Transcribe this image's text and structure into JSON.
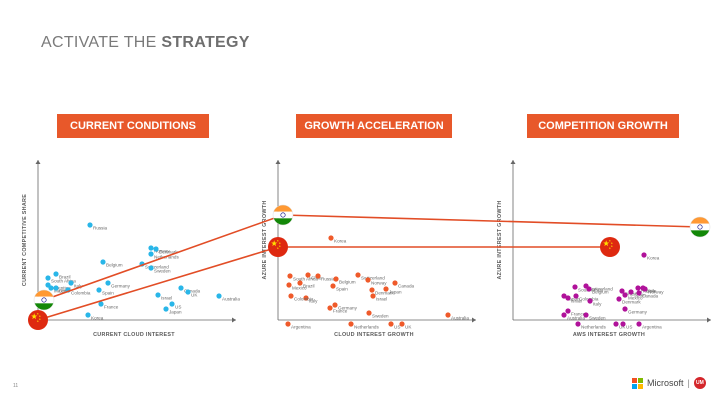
{
  "title": {
    "normal": "ACTIVATE THE ",
    "bold": "STRATEGY"
  },
  "slide_number": "11",
  "brand": {
    "name": "Microsoft",
    "separator": "|",
    "badge": "UM",
    "logo_colors": [
      "#f25022",
      "#7fba00",
      "#00a4ef",
      "#ffb900"
    ]
  },
  "colors": {
    "accent": "#e8582a",
    "current": "#29b6e8",
    "acceleration": "#ef5a2a",
    "competition": "#b0129a",
    "link": "#e24d26"
  },
  "panels": [
    {
      "header": "CURRENT CONDITIONS",
      "xlabel": "CURRENT CLOUD INTEREST",
      "ylabel": "CURRENT COMPETITIVE SHARE"
    },
    {
      "header": "GROWTH ACCELERATION",
      "xlabel": "CLOUD INTEREST GROWTH",
      "ylabel": "AZURE INTEREST GROWTH"
    },
    {
      "header": "COMPETITION GROWTH",
      "xlabel": "AWS INTEREST GROWTH",
      "ylabel": "AZURE INTEREST GROWTH"
    }
  ],
  "chart_data": [
    {
      "type": "scatter",
      "title": "CURRENT CONDITIONS",
      "xlabel": "CURRENT CLOUD INTEREST",
      "ylabel": "CURRENT COMPETITIVE SHARE",
      "points": [
        {
          "label": "Russia",
          "x": 52,
          "y": 95
        },
        {
          "label": "Norway",
          "x": 113,
          "y": 72
        },
        {
          "label": "Denmark",
          "x": 118,
          "y": 71
        },
        {
          "label": "Netherlands",
          "x": 113,
          "y": 66
        },
        {
          "label": "Switzerland",
          "x": 104,
          "y": 56
        },
        {
          "label": "Sweden",
          "x": 113,
          "y": 52
        },
        {
          "label": "Belgium",
          "x": 65,
          "y": 58
        },
        {
          "label": "Brazil",
          "x": 18,
          "y": 46
        },
        {
          "label": "South Africa",
          "x": 10,
          "y": 42
        },
        {
          "label": "Italy",
          "x": 33,
          "y": 37
        },
        {
          "label": "Germany",
          "x": 70,
          "y": 37
        },
        {
          "label": "Argentina",
          "x": 10,
          "y": 35
        },
        {
          "label": "Mexico",
          "x": 13,
          "y": 32
        },
        {
          "label": "Chile",
          "x": 18,
          "y": 32
        },
        {
          "label": "Colombia",
          "x": 30,
          "y": 30
        },
        {
          "label": "Spain",
          "x": 61,
          "y": 30
        },
        {
          "label": "Canada",
          "x": 143,
          "y": 32
        },
        {
          "label": "UK",
          "x": 150,
          "y": 28
        },
        {
          "label": "Israel",
          "x": 120,
          "y": 25
        },
        {
          "label": "Australia",
          "x": 181,
          "y": 24
        },
        {
          "label": "France",
          "x": 63,
          "y": 16
        },
        {
          "label": "US",
          "x": 134,
          "y": 16
        },
        {
          "label": "Japan",
          "x": 128,
          "y": 11
        },
        {
          "label": "Korea",
          "x": 50,
          "y": 5
        }
      ],
      "flags": [
        {
          "label": "India",
          "x": 6,
          "y": 20
        },
        {
          "label": "China",
          "x": 0,
          "y": 0
        }
      ]
    },
    {
      "type": "scatter",
      "title": "GROWTH ACCELERATION",
      "xlabel": "CLOUD INTEREST GROWTH",
      "ylabel": "AZURE INTEREST GROWTH",
      "points": [
        {
          "label": "Korea",
          "x": 53,
          "y": 82
        },
        {
          "label": "South Africa",
          "x": 12,
          "y": 44
        },
        {
          "label": "Chile",
          "x": 30,
          "y": 45
        },
        {
          "label": "Russia",
          "x": 40,
          "y": 44
        },
        {
          "label": "Switzerland",
          "x": 80,
          "y": 45
        },
        {
          "label": "Belgium",
          "x": 58,
          "y": 41
        },
        {
          "label": "Norway",
          "x": 90,
          "y": 40
        },
        {
          "label": "Canada",
          "x": 117,
          "y": 37
        },
        {
          "label": "Brazil",
          "x": 22,
          "y": 37
        },
        {
          "label": "Spain",
          "x": 55,
          "y": 34
        },
        {
          "label": "Mexico",
          "x": 11,
          "y": 35
        },
        {
          "label": "Denmark",
          "x": 94,
          "y": 30
        },
        {
          "label": "Japan",
          "x": 108,
          "y": 31
        },
        {
          "label": "Italy",
          "x": 28,
          "y": 22
        },
        {
          "label": "Colombia",
          "x": 13,
          "y": 24
        },
        {
          "label": "Israel",
          "x": 95,
          "y": 24
        },
        {
          "label": "Germany",
          "x": 57,
          "y": 15
        },
        {
          "label": "France",
          "x": 52,
          "y": 12
        },
        {
          "label": "Sweden",
          "x": 91,
          "y": 7
        },
        {
          "label": "Australia",
          "x": 170,
          "y": 5
        },
        {
          "label": "Argentina",
          "x": 10,
          "y": -4
        },
        {
          "label": "US",
          "x": 113,
          "y": -4
        },
        {
          "label": "UK",
          "x": 124,
          "y": -4
        },
        {
          "label": "Netherlands",
          "x": 73,
          "y": -4
        }
      ],
      "flags": [
        {
          "label": "India",
          "x": 5,
          "y": 105
        },
        {
          "label": "China",
          "x": 0,
          "y": 73
        }
      ]
    },
    {
      "type": "scatter",
      "title": "COMPETITION GROWTH",
      "xlabel": "AWS INTEREST GROWTH",
      "ylabel": "AZURE INTEREST GROWTH",
      "points": [
        {
          "label": "Korea",
          "x": 131,
          "y": 65
        },
        {
          "label": "Switzerland",
          "x": 73,
          "y": 34
        },
        {
          "label": "South Africa",
          "x": 62,
          "y": 33
        },
        {
          "label": "Belgium",
          "x": 76,
          "y": 31
        },
        {
          "label": "Russia",
          "x": 125,
          "y": 32
        },
        {
          "label": "Chile",
          "x": 130,
          "y": 32
        },
        {
          "label": "Norway",
          "x": 132,
          "y": 31
        },
        {
          "label": "Brazil",
          "x": 109,
          "y": 29
        },
        {
          "label": "Spain",
          "x": 118,
          "y": 28
        },
        {
          "label": "Canada",
          "x": 126,
          "y": 27
        },
        {
          "label": "Mexico",
          "x": 112,
          "y": 25
        },
        {
          "label": "Japan",
          "x": 51,
          "y": 24
        },
        {
          "label": "Israel",
          "x": 55,
          "y": 22
        },
        {
          "label": "Colombia",
          "x": 63,
          "y": 24
        },
        {
          "label": "Italy",
          "x": 77,
          "y": 19
        },
        {
          "label": "Denmark",
          "x": 106,
          "y": 21
        },
        {
          "label": "Germany",
          "x": 112,
          "y": 11
        },
        {
          "label": "France",
          "x": 55,
          "y": 9
        },
        {
          "label": "Sweden",
          "x": 73,
          "y": 5
        },
        {
          "label": "Australia",
          "x": 51,
          "y": 5
        },
        {
          "label": "Argentina",
          "x": 126,
          "y": -4
        },
        {
          "label": "UK",
          "x": 103,
          "y": -4
        },
        {
          "label": "US",
          "x": 110,
          "y": -4
        },
        {
          "label": "Netherlands",
          "x": 65,
          "y": -4
        }
      ],
      "flags": [
        {
          "label": "India",
          "x": 187,
          "y": 93
        },
        {
          "label": "China",
          "x": 97,
          "y": 73
        }
      ]
    }
  ]
}
